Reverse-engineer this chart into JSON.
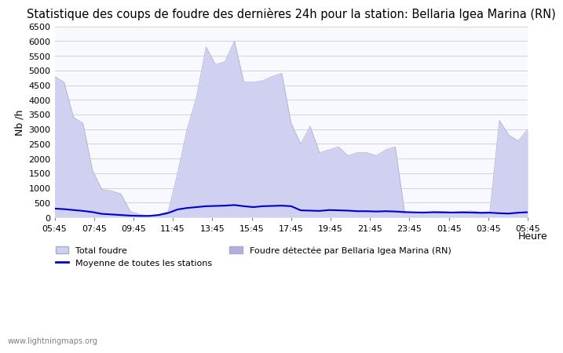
{
  "title": "Statistique des coups de foudre des dernières 24h pour la station: Bellaria Igea Marina (RN)",
  "xlabel": "Heure",
  "ylabel": "Nb /h",
  "ylim": [
    0,
    6500
  ],
  "yticks": [
    0,
    500,
    1000,
    1500,
    2000,
    2500,
    3000,
    3500,
    4000,
    4500,
    5000,
    5500,
    6000,
    6500
  ],
  "xtick_labels": [
    "05:45",
    "07:45",
    "09:45",
    "11:45",
    "13:45",
    "15:45",
    "17:45",
    "19:45",
    "21:45",
    "23:45",
    "01:45",
    "03:45",
    "05:45"
  ],
  "bg_color": "#f8f8ff",
  "area_color_light": "#d0d0f0",
  "area_color_dark": "#b0b0e0",
  "line_color": "#0000cc",
  "watermark": "www.lightningmaps.org",
  "total_foudre": [
    4800,
    4600,
    3400,
    3200,
    1600,
    950,
    900,
    800,
    200,
    100,
    50,
    100,
    200,
    1500,
    3000,
    4100,
    5800,
    5200,
    5300,
    6000,
    4600,
    4600,
    4650,
    4800,
    4900,
    3200,
    2500,
    3100,
    2200,
    2300,
    2400,
    2100,
    2200,
    2200,
    2100,
    2300,
    2400,
    150,
    180,
    130,
    200,
    200,
    180,
    200,
    220,
    180,
    190,
    3300,
    2800,
    2600,
    3000
  ],
  "detected_foudre": [
    0,
    0,
    0,
    0,
    0,
    0,
    0,
    0,
    0,
    0,
    0,
    0,
    0,
    0,
    0,
    0,
    0,
    0,
    0,
    0,
    0,
    0,
    0,
    0,
    0,
    0,
    0,
    0,
    0,
    0,
    0,
    0,
    0,
    0,
    0,
    0,
    0,
    0,
    0,
    0,
    0,
    0,
    0,
    0,
    0,
    0,
    0,
    0,
    0,
    0,
    0
  ],
  "moyenne": [
    300,
    280,
    250,
    220,
    180,
    120,
    100,
    80,
    60,
    50,
    50,
    80,
    150,
    270,
    320,
    350,
    380,
    390,
    400,
    420,
    380,
    350,
    380,
    390,
    400,
    380,
    240,
    230,
    220,
    250,
    240,
    230,
    210,
    210,
    200,
    210,
    200,
    180,
    170,
    165,
    175,
    170,
    165,
    170,
    165,
    155,
    160,
    140,
    130,
    160,
    175
  ]
}
